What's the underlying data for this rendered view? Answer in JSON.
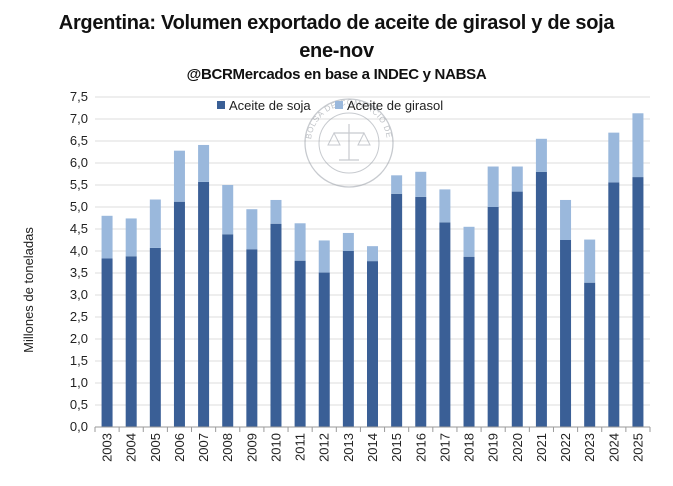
{
  "header": {
    "title_line1": "Argentina: Volumen exportado de aceite de girasol y de soja",
    "title_line2": "ene-nov",
    "subtitle": "@BCRMercados en base a INDEC y NABSA"
  },
  "watermark": {
    "text": "BOLSA DE COMERCIO DE ROSARIO",
    "icon": "bcr-seal-icon"
  },
  "colors": {
    "soja": "#3a5f96",
    "girasol": "#9ab8dc",
    "grid": "#dcdcdc"
  },
  "chart_data": {
    "type": "bar",
    "stacked": true,
    "categories": [
      "2003",
      "2004",
      "2005",
      "2006",
      "2007",
      "2008",
      "2009",
      "2010",
      "2011",
      "2012",
      "2013",
      "2014",
      "2015",
      "2016",
      "2017",
      "2018",
      "2019",
      "2020",
      "2021",
      "2022",
      "2023",
      "2024",
      "2025"
    ],
    "series": [
      {
        "name": "Aceite de soja",
        "values": [
          3.83,
          3.88,
          4.07,
          5.12,
          5.57,
          4.38,
          4.04,
          4.62,
          3.78,
          3.51,
          4.0,
          3.77,
          5.3,
          5.23,
          4.65,
          3.87,
          5.0,
          5.35,
          5.8,
          4.25,
          3.28,
          5.56,
          5.68
        ]
      },
      {
        "name": "Aceite de girasol",
        "values": [
          0.97,
          0.86,
          1.1,
          1.16,
          0.84,
          1.12,
          0.91,
          0.54,
          0.85,
          0.73,
          0.41,
          0.34,
          0.42,
          0.57,
          0.75,
          0.68,
          0.92,
          0.57,
          0.75,
          0.91,
          0.98,
          1.13,
          1.45
        ]
      }
    ],
    "ylabel": "Millones de toneladas",
    "xlabel": "",
    "ylim": [
      0,
      7.5
    ],
    "yticks": [
      "0,0",
      "0,5",
      "1,0",
      "1,5",
      "2,0",
      "2,5",
      "3,0",
      "3,5",
      "4,0",
      "4,5",
      "5,0",
      "5,5",
      "6,0",
      "6,5",
      "7,0",
      "7,5"
    ],
    "grid": true,
    "legend_position": "top-center"
  }
}
